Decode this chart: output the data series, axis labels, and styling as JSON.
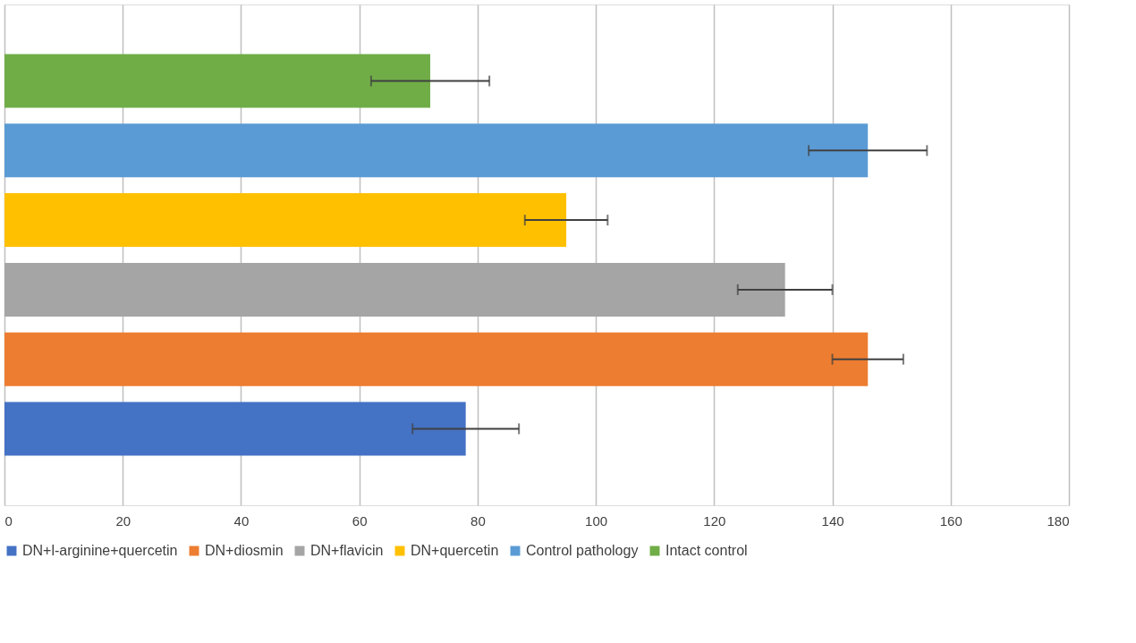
{
  "chart_data": {
    "type": "bar",
    "orientation": "horizontal",
    "categories": [
      null
    ],
    "series": [
      {
        "name": "DN+l-arginine+quercetin",
        "color": "#4472c4",
        "values": [
          78
        ],
        "errors": [
          [
            69,
            87
          ]
        ]
      },
      {
        "name": "DN+diosmin",
        "color": "#ed7d31",
        "values": [
          146
        ],
        "errors": [
          [
            140,
            152
          ]
        ]
      },
      {
        "name": "DN+flavicin",
        "color": "#a5a5a5",
        "values": [
          132
        ],
        "errors": [
          [
            124,
            140
          ]
        ]
      },
      {
        "name": "DN+quercetin",
        "color": "#ffc000",
        "values": [
          95
        ],
        "errors": [
          [
            88,
            102
          ]
        ]
      },
      {
        "name": "Control pathology",
        "color": "#5b9bd5",
        "values": [
          146
        ],
        "errors": [
          [
            136,
            156
          ]
        ]
      },
      {
        "name": "Intact control",
        "color": "#70ad47",
        "values": [
          72
        ],
        "errors": [
          [
            62,
            82
          ]
        ]
      }
    ],
    "xlim": [
      0,
      180
    ],
    "xticks": [
      0,
      20,
      40,
      60,
      80,
      100,
      120,
      140,
      160,
      180
    ],
    "grid": "x",
    "legend": "bottom",
    "tick_labels": "x"
  }
}
